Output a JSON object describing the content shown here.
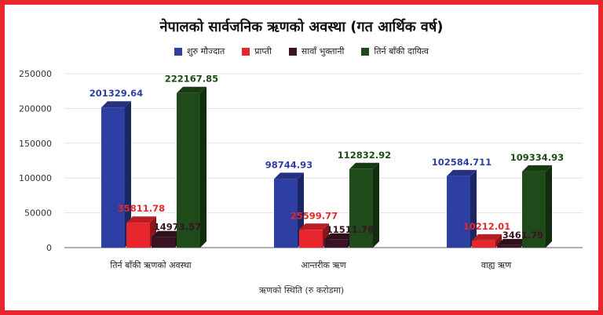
{
  "chart_data": {
    "type": "bar",
    "title": "नेपालको सार्वजनिक ऋणको अवस्था (गत आर्थिक वर्ष)",
    "xlabel": "ऋणको स्थिति (रु करोडमा)",
    "ylabel": "",
    "ylim": [
      0,
      250000
    ],
    "yticks": [
      "250000",
      "200000",
      "150000",
      "100000",
      "50000",
      "0"
    ],
    "legend_position": "top",
    "grid": true,
    "categories": [
      "तिर्न बाँकी ऋणको अवस्था",
      "आन्तरीक ऋण",
      "वाह्य ऋण"
    ],
    "series": [
      {
        "name": "शुरु मौज्दात",
        "color": "#2e3fa3",
        "values": [
          201329.64,
          98744.93,
          102584.711
        ],
        "labels": [
          "201329.64",
          "98744.93",
          "102584.711"
        ]
      },
      {
        "name": "प्राप्ती",
        "color": "#e8262b",
        "values": [
          35811.78,
          25599.77,
          10212.01
        ],
        "labels": [
          "35811.78",
          "25599.77",
          "10212.01"
        ]
      },
      {
        "name": "सावाँ भुक्तानी",
        "color": "#3a1424",
        "values": [
          14973.57,
          11511.78,
          3461.79
        ],
        "labels": [
          "14973.57",
          "11511.78",
          "3461.79"
        ]
      },
      {
        "name": "तिर्न बाँकी दायित्व",
        "color": "#1f4a19",
        "values": [
          222167.85,
          112832.92,
          109334.93
        ],
        "labels": [
          "222167.85",
          "112832.92",
          "109334.93"
        ]
      }
    ]
  }
}
